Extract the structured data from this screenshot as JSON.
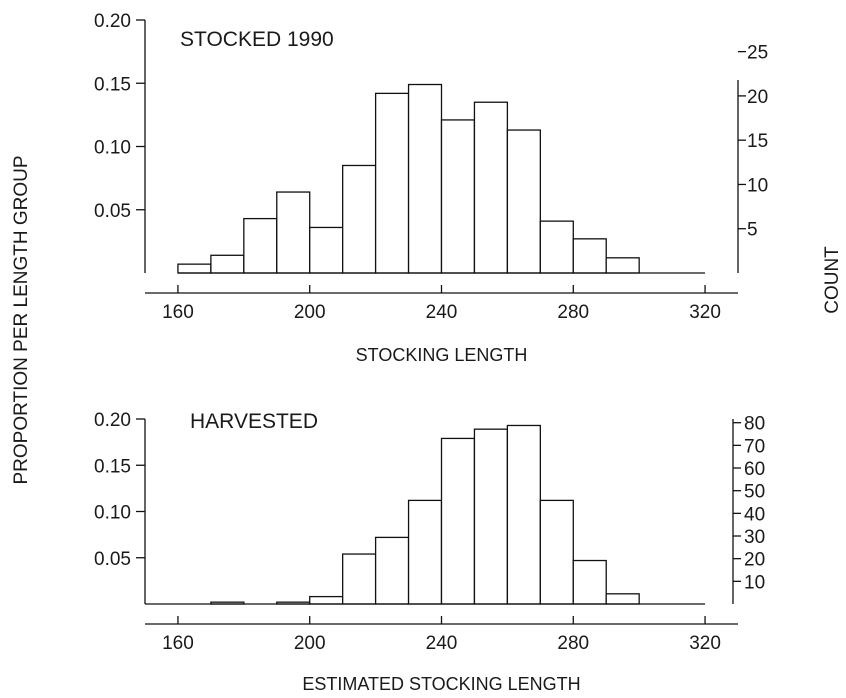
{
  "shared": {
    "ylabel": "PROPORTION PER LENGTH GROUP",
    "ylabel_right": "COUNT"
  },
  "chart_data": [
    {
      "type": "bar",
      "title": "STOCKED 1990",
      "xlabel": "STOCKING LENGTH",
      "ylabel": "PROPORTION PER LENGTH GROUP",
      "ylabel_right": "COUNT",
      "bin_width": 10,
      "bin_starts": [
        160,
        170,
        180,
        190,
        200,
        210,
        220,
        230,
        240,
        250,
        260,
        270,
        280,
        290,
        300,
        310
      ],
      "values": [
        0.007,
        0.014,
        0.043,
        0.064,
        0.036,
        0.085,
        0.142,
        0.149,
        0.121,
        0.135,
        0.113,
        0.041,
        0.027,
        0.012,
        0.0,
        0.0
      ],
      "xlim": [
        150,
        330
      ],
      "xticks": [
        160,
        200,
        240,
        280,
        320
      ],
      "ylim": [
        0,
        0.2
      ],
      "yticks": [
        0.05,
        0.1,
        0.15,
        0.2
      ],
      "yticklabels": [
        "0.05",
        "0.10",
        "0.15",
        "0.20"
      ],
      "y2ticks": [
        5,
        10,
        15,
        20,
        25
      ],
      "y2_scale": 0.007,
      "grid": false
    },
    {
      "type": "bar",
      "title": "HARVESTED",
      "xlabel": "ESTIMATED STOCKING LENGTH",
      "ylabel": "PROPORTION PER LENGTH GROUP",
      "ylabel_right": "COUNT",
      "bin_width": 10,
      "bin_starts": [
        150,
        160,
        170,
        180,
        190,
        200,
        210,
        220,
        230,
        240,
        250,
        260,
        270,
        280,
        290,
        300,
        310
      ],
      "values": [
        0.0,
        0.0,
        0.002,
        0.0,
        0.002,
        0.008,
        0.054,
        0.072,
        0.112,
        0.179,
        0.189,
        0.193,
        0.112,
        0.047,
        0.011,
        0.0,
        0.0
      ],
      "xlim": [
        150,
        330
      ],
      "xticks": [
        160,
        200,
        240,
        280,
        320
      ],
      "ylim": [
        0,
        0.2
      ],
      "yticks": [
        0.05,
        0.1,
        0.15,
        0.2
      ],
      "yticklabels": [
        "0.05",
        "0.10",
        "0.15",
        "0.20"
      ],
      "y2ticks": [
        10,
        20,
        30,
        40,
        50,
        60,
        70,
        80
      ],
      "y2_scale": 0.00245,
      "grid": false
    }
  ]
}
